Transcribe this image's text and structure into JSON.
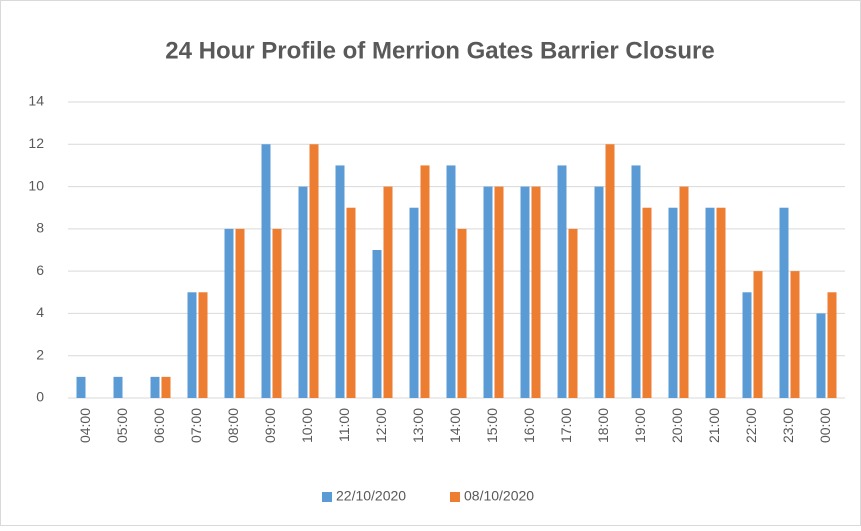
{
  "chart_data": {
    "type": "bar",
    "title": "24 Hour Profile of Merrion Gates Barrier Closure",
    "categories": [
      "04:00",
      "05:00",
      "06:00",
      "07:00",
      "08:00",
      "09:00",
      "10:00",
      "11:00",
      "12:00",
      "13:00",
      "14:00",
      "15:00",
      "16:00",
      "17:00",
      "18:00",
      "19:00",
      "20:00",
      "21:00",
      "22:00",
      "23:00",
      "00:00"
    ],
    "series": [
      {
        "name": "22/10/2020",
        "color": "#5b9bd5",
        "values": [
          1,
          1,
          1,
          5,
          8,
          12,
          10,
          11,
          7,
          9,
          11,
          10,
          10,
          11,
          10,
          11,
          9,
          9,
          5,
          9,
          4
        ]
      },
      {
        "name": "08/10/2020",
        "color": "#ed7d31",
        "values": [
          0,
          0,
          1,
          5,
          8,
          8,
          12,
          9,
          10,
          11,
          8,
          10,
          10,
          8,
          12,
          9,
          10,
          9,
          6,
          6,
          5
        ]
      }
    ],
    "ylim": [
      0,
      14
    ],
    "yticks": [
      0,
      2,
      4,
      6,
      8,
      10,
      12,
      14
    ],
    "grid": true,
    "legend": "bottom"
  }
}
